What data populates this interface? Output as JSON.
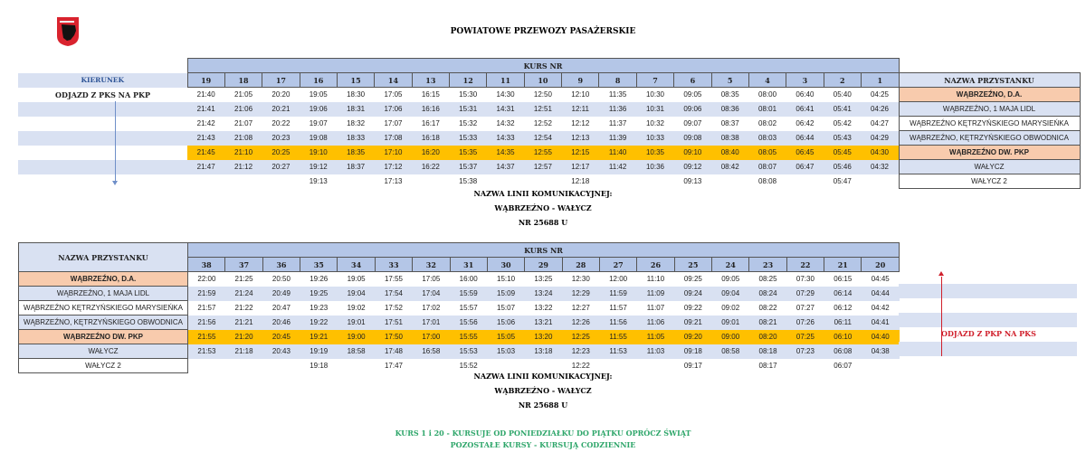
{
  "header": {
    "title": "POWIATOWE PRZEWOZY PASAŻERSKIE",
    "logo": "coat-of-arms"
  },
  "colors": {
    "header": "#b4c6e7",
    "alt_row": "#d9e1f2",
    "highlight": "#ffc000",
    "stop_highlight": "#f8cbad",
    "notes": "#2ea66a",
    "direction": "#d0202c"
  },
  "top": {
    "kierunek_label": "KIERUNEK",
    "kurs_label": "KURS NR",
    "stop_header": "NAZWA PRZYSTANKU",
    "direction": "ODJAZD Z PKS NA PKP",
    "courses": [
      "19",
      "18",
      "17",
      "16",
      "15",
      "14",
      "13",
      "12",
      "11",
      "10",
      "9",
      "8",
      "7",
      "6",
      "5",
      "4",
      "3",
      "2",
      "1"
    ],
    "stops": [
      "WĄBRZEŹNO, D.A.",
      "WĄBRZEŹNO, 1 MAJA  LIDL",
      "WĄBRZEŹNO KĘTRZYŃSKIEGO MARYSIEŃKA",
      "WĄBRZEŹNO, KĘTRZYŃSKIEGO OBWODNICA",
      "WĄBRZEŹNO DW. PKP",
      "WAŁYCZ",
      "WAŁYCZ  2"
    ],
    "rows": [
      [
        "21:40",
        "21:05",
        "20:20",
        "19:05",
        "18:30",
        "17:05",
        "16:15",
        "15:30",
        "14:30",
        "12:50",
        "12:10",
        "11:35",
        "10:30",
        "09:05",
        "08:35",
        "08:00",
        "06:40",
        "05:40",
        "04:25"
      ],
      [
        "21:41",
        "21:06",
        "20:21",
        "19:06",
        "18:31",
        "17:06",
        "16:16",
        "15:31",
        "14:31",
        "12:51",
        "12:11",
        "11:36",
        "10:31",
        "09:06",
        "08:36",
        "08:01",
        "06:41",
        "05:41",
        "04:26"
      ],
      [
        "21:42",
        "21:07",
        "20:22",
        "19:07",
        "18:32",
        "17:07",
        "16:17",
        "15:32",
        "14:32",
        "12:52",
        "12:12",
        "11:37",
        "10:32",
        "09:07",
        "08:37",
        "08:02",
        "06:42",
        "05:42",
        "04:27"
      ],
      [
        "21:43",
        "21:08",
        "20:23",
        "19:08",
        "18:33",
        "17:08",
        "16:18",
        "15:33",
        "14:33",
        "12:54",
        "12:13",
        "11:39",
        "10:33",
        "09:08",
        "08:38",
        "08:03",
        "06:44",
        "05:43",
        "04:29"
      ],
      [
        "21:45",
        "21:10",
        "20:25",
        "19:10",
        "18:35",
        "17:10",
        "16:20",
        "15:35",
        "14:35",
        "12:55",
        "12:15",
        "11:40",
        "10:35",
        "09:10",
        "08:40",
        "08:05",
        "06:45",
        "05:45",
        "04:30"
      ],
      [
        "21:47",
        "21:12",
        "20:27",
        "19:12",
        "18:37",
        "17:12",
        "16:22",
        "15:37",
        "14:37",
        "12:57",
        "12:17",
        "11:42",
        "10:36",
        "09:12",
        "08:42",
        "08:07",
        "06:47",
        "05:46",
        "04:32"
      ],
      [
        "",
        "",
        "",
        "19:13",
        "",
        "17:13",
        "",
        "15:38",
        "",
        "",
        "12:18",
        "",
        "",
        "09:13",
        "",
        "08:08",
        "",
        "05:47",
        ""
      ]
    ]
  },
  "line1": {
    "label": "NAZWA LINII KOMUNIKACYJNEJ:",
    "name": "WĄBRZEŹNO - WAŁYCZ",
    "number": "NR 25688 U"
  },
  "bottom": {
    "kurs_label": "KURS NR",
    "stop_header": "NAZWA PRZYSTANKU",
    "direction": "ODJAZD Z PKP NA PKS",
    "courses": [
      "38",
      "37",
      "36",
      "35",
      "34",
      "33",
      "32",
      "31",
      "30",
      "29",
      "28",
      "27",
      "26",
      "25",
      "24",
      "23",
      "22",
      "21",
      "20"
    ],
    "stops": [
      "WĄBRZEŹNO, D.A.",
      "WĄBRZEŹNO, 1 MAJA  LIDL",
      "WĄBRZEŹNO KĘTRZYŃSKIEGO MARYSIEŃKA",
      "WĄBRZEŹNO, KĘTRZYŃSKIEGO OBWODNICA",
      "WĄBRZEŹNO DW. PKP",
      "WAŁYCZ",
      "WAŁYCZ  2"
    ],
    "rows": [
      [
        "22:00",
        "21:25",
        "20:50",
        "19:26",
        "19:05",
        "17:55",
        "17:05",
        "16:00",
        "15:10",
        "13:25",
        "12:30",
        "12:00",
        "11:10",
        "09:25",
        "09:05",
        "08:25",
        "07:30",
        "06:15",
        "04:45"
      ],
      [
        "21:59",
        "21:24",
        "20:49",
        "19:25",
        "19:04",
        "17:54",
        "17:04",
        "15:59",
        "15:09",
        "13:24",
        "12:29",
        "11:59",
        "11:09",
        "09:24",
        "09:04",
        "08:24",
        "07:29",
        "06:14",
        "04:44"
      ],
      [
        "21:57",
        "21:22",
        "20:47",
        "19:23",
        "19:02",
        "17:52",
        "17:02",
        "15:57",
        "15:07",
        "13:22",
        "12:27",
        "11:57",
        "11:07",
        "09:22",
        "09:02",
        "08:22",
        "07:27",
        "06:12",
        "04:42"
      ],
      [
        "21:56",
        "21:21",
        "20:46",
        "19:22",
        "19:01",
        "17:51",
        "17:01",
        "15:56",
        "15:06",
        "13:21",
        "12:26",
        "11:56",
        "11:06",
        "09:21",
        "09:01",
        "08:21",
        "07:26",
        "06:11",
        "04:41"
      ],
      [
        "21:55",
        "21:20",
        "20:45",
        "19:21",
        "19:00",
        "17:50",
        "17:00",
        "15:55",
        "15:05",
        "13:20",
        "12:25",
        "11:55",
        "11:05",
        "09:20",
        "09:00",
        "08:20",
        "07:25",
        "06:10",
        "04:40"
      ],
      [
        "21:53",
        "21:18",
        "20:43",
        "19:19",
        "18:58",
        "17:48",
        "16:58",
        "15:53",
        "15:03",
        "13:18",
        "12:23",
        "11:53",
        "11:03",
        "09:18",
        "08:58",
        "08:18",
        "07:23",
        "06:08",
        "04:38"
      ],
      [
        "",
        "",
        "",
        "19:18",
        "",
        "17:47",
        "",
        "15:52",
        "",
        "",
        "12:22",
        "",
        "",
        "09:17",
        "",
        "08:17",
        "",
        "06:07",
        ""
      ]
    ]
  },
  "line2": {
    "label": "NAZWA LINII KOMUNIKACYJNEJ:",
    "name": "WĄBRZEŹNO - WAŁYCZ",
    "number": "NR 25688 U"
  },
  "notes": [
    "KURS 1 i 20 - KURSUJE OD PONIEDZIAŁKU DO PIĄTKU OPRÓCZ ŚWIĄT",
    "POZOSTAŁE KURSY - KURSUJĄ CODZIENNIE"
  ]
}
